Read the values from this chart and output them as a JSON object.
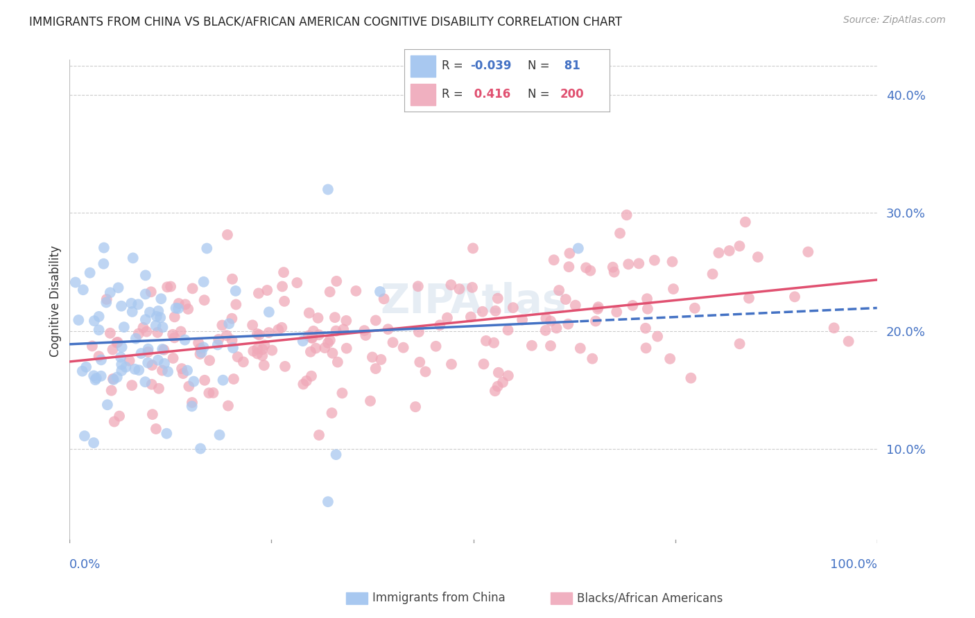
{
  "title": "IMMIGRANTS FROM CHINA VS BLACK/AFRICAN AMERICAN COGNITIVE DISABILITY CORRELATION CHART",
  "source": "Source: ZipAtlas.com",
  "ylabel": "Cognitive Disability",
  "ytick_values": [
    0.1,
    0.2,
    0.3,
    0.4
  ],
  "xlim": [
    0.0,
    1.0
  ],
  "ylim": [
    0.02,
    0.43
  ],
  "series": [
    {
      "label": "Immigrants from China",
      "R": -0.039,
      "N": 81,
      "color_scatter": "#a8c8f0",
      "color_line": "#4472c4",
      "legend_color": "#a8c8f0"
    },
    {
      "label": "Blacks/African Americans",
      "R": 0.416,
      "N": 200,
      "color_scatter": "#f0a8b8",
      "color_line": "#e05070",
      "legend_color": "#f0b0c0"
    }
  ],
  "watermark": "ZIPAtlas",
  "title_fontsize": 12,
  "axis_label_color": "#4472c4",
  "grid_color": "#cccccc",
  "background_color": "#ffffff"
}
